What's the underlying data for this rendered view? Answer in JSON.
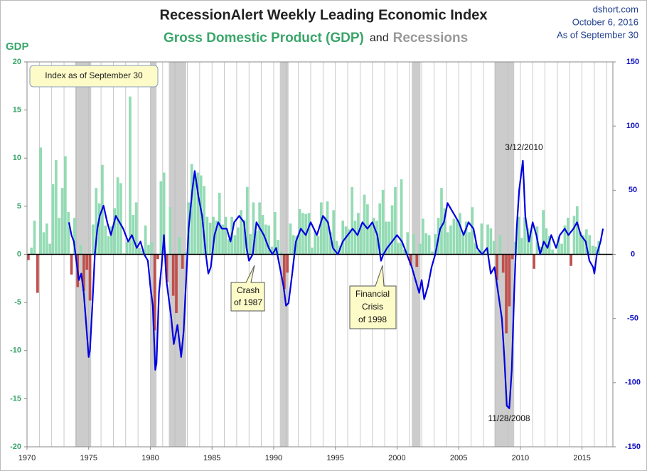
{
  "chart_data": {
    "type": "combo",
    "title": "RecessionAlert Weekly Leading Economic Index",
    "subtitle_parts": [
      "Gross Domestic Product (GDP)",
      "and",
      "Recessions"
    ],
    "source": "dshort.com",
    "date": "October 6, 2016",
    "as_of": "As of September 30",
    "y_label": "GDP",
    "box_note": "Index as of September 30",
    "annotations": {
      "peak": "3/12/2010",
      "trough": "11/28/2008",
      "crash": [
        "Crash",
        "of 1987"
      ],
      "crisis": [
        "Financial",
        "Crisis",
        "of 1998"
      ]
    },
    "xlim": [
      1970,
      2017.5
    ],
    "xticks": [
      1970,
      1975,
      1980,
      1985,
      1990,
      1995,
      2000,
      2005,
      2010,
      2015
    ],
    "ylim": [
      -20,
      20
    ],
    "yticks": [
      20,
      15,
      10,
      5,
      0,
      -5,
      -10,
      -15,
      -20
    ],
    "y2lim": [
      -150,
      150
    ],
    "y2ticks": [
      150,
      100,
      50,
      0,
      -50,
      -100,
      -150
    ],
    "recession_color": "#cccccc",
    "recessions": [
      [
        1973.9,
        1975.2
      ],
      [
        1980.0,
        1980.5
      ],
      [
        1981.5,
        1982.9
      ],
      [
        1990.5,
        1991.2
      ],
      [
        2001.2,
        2001.9
      ],
      [
        2007.9,
        2009.5
      ]
    ],
    "gdp": {
      "color": "#93dcb4",
      "negative_color": "#c0504d",
      "x": [
        1970,
        1970.25,
        1970.5,
        1970.75,
        1971,
        1971.25,
        1971.5,
        1971.75,
        1972,
        1972.25,
        1972.5,
        1972.75,
        1973,
        1973.25,
        1973.5,
        1973.75,
        1974,
        1974.25,
        1974.5,
        1974.75,
        1975,
        1975.25,
        1975.5,
        1975.75,
        1976,
        1976.25,
        1976.5,
        1976.75,
        1977,
        1977.25,
        1977.5,
        1977.75,
        1978,
        1978.25,
        1978.5,
        1978.75,
        1979,
        1979.25,
        1979.5,
        1979.75,
        1980,
        1980.25,
        1980.5,
        1980.75,
        1981,
        1981.25,
        1981.5,
        1981.75,
        1982,
        1982.25,
        1982.5,
        1982.75,
        1983,
        1983.25,
        1983.5,
        1983.75,
        1984,
        1984.25,
        1984.5,
        1984.75,
        1985,
        1985.25,
        1985.5,
        1985.75,
        1986,
        1986.25,
        1986.5,
        1986.75,
        1987,
        1987.25,
        1987.5,
        1987.75,
        1988,
        1988.25,
        1988.5,
        1988.75,
        1989,
        1989.25,
        1989.5,
        1989.75,
        1990,
        1990.25,
        1990.5,
        1990.75,
        1991,
        1991.25,
        1991.5,
        1991.75,
        1992,
        1992.25,
        1992.5,
        1992.75,
        1993,
        1993.25,
        1993.5,
        1993.75,
        1994,
        1994.25,
        1994.5,
        1994.75,
        1995,
        1995.25,
        1995.5,
        1995.75,
        1996,
        1996.25,
        1996.5,
        1996.75,
        1997,
        1997.25,
        1997.5,
        1997.75,
        1998,
        1998.25,
        1998.5,
        1998.75,
        1999,
        1999.25,
        1999.5,
        1999.75,
        2000,
        2000.25,
        2000.5,
        2000.75,
        2001,
        2001.25,
        2001.5,
        2001.75,
        2002,
        2002.25,
        2002.5,
        2002.75,
        2003,
        2003.25,
        2003.5,
        2003.75,
        2004,
        2004.25,
        2004.5,
        2004.75,
        2005,
        2005.25,
        2005.5,
        2005.75,
        2006,
        2006.25,
        2006.5,
        2006.75,
        2007,
        2007.25,
        2007.5,
        2007.75,
        2008,
        2008.25,
        2008.5,
        2008.75,
        2009,
        2009.25,
        2009.5,
        2009.75,
        2010,
        2010.25,
        2010.5,
        2010.75,
        2011,
        2011.25,
        2011.5,
        2011.75,
        2012,
        2012.25,
        2012.5,
        2012.75,
        2013,
        2013.25,
        2013.5,
        2013.75,
        2014,
        2014.25,
        2014.5,
        2014.75,
        2015,
        2015.25,
        2015.5,
        2015.75,
        2016,
        2016.25
      ],
      "values": [
        -0.6,
        0.7,
        3.5,
        -4.0,
        11.1,
        2.3,
        3.2,
        1.1,
        7.3,
        9.8,
        3.8,
        6.9,
        10.2,
        4.4,
        -2.1,
        3.8,
        -3.4,
        1.0,
        -3.8,
        -1.6,
        -4.8,
        3.1,
        6.9,
        5.3,
        9.3,
        3.0,
        1.9,
        2.9,
        4.8,
        8.0,
        7.4,
        0.1,
        1.3,
        16.4,
        4.1,
        5.4,
        0.7,
        0.4,
        3.0,
        1.0,
        1.3,
        -7.9,
        -0.5,
        7.6,
        8.5,
        -2.9,
        4.9,
        -4.3,
        -6.1,
        1.8,
        -1.5,
        0.2,
        5.4,
        9.4,
        8.1,
        8.5,
        8.2,
        7.1,
        3.9,
        3.3,
        3.9,
        3.5,
        6.4,
        3.1,
        3.9,
        1.6,
        3.9,
        2.0,
        2.8,
        4.6,
        3.6,
        7.0,
        2.1,
        5.4,
        2.4,
        5.4,
        4.1,
        3.1,
        3.0,
        0.8,
        4.4,
        1.5,
        0.3,
        -3.6,
        -1.9,
        3.2,
        2.0,
        1.9,
        4.7,
        4.3,
        4.2,
        4.3,
        0.7,
        2.4,
        1.9,
        5.4,
        3.9,
        5.5,
        2.3,
        4.6,
        1.4,
        0.9,
        3.5,
        2.9,
        2.6,
        7.0,
        3.5,
        4.3,
        3.1,
        6.2,
        5.2,
        3.1,
        3.8,
        3.5,
        5.3,
        6.7,
        3.4,
        3.4,
        5.1,
        7.0,
        1.2,
        7.8,
        0.5,
        2.3,
        -1.1,
        2.1,
        -1.3,
        1.1,
        3.7,
        2.2,
        2.0,
        0.3,
        2.1,
        3.8,
        6.9,
        4.8,
        2.3,
        3.0,
        3.7,
        3.5,
        4.3,
        2.1,
        3.4,
        2.3,
        4.9,
        1.2,
        0.4,
        3.2,
        0.2,
        3.1,
        2.7,
        1.4,
        -2.7,
        2.0,
        -1.9,
        -8.2,
        -5.4,
        -0.5,
        1.3,
        3.9,
        1.7,
        3.9,
        2.7,
        2.5,
        -1.5,
        2.9,
        0.8,
        4.6,
        2.7,
        1.9,
        0.5,
        0.1,
        1.9,
        1.1,
        3.0,
        3.8,
        -1.2,
        4.0,
        5.0,
        2.3,
        2.0,
        2.6,
        2.0,
        0.9,
        0.8,
        1.4
      ]
    },
    "lei": {
      "color": "#0000e0",
      "axis": "y2",
      "x": [
        1973.4,
        1973.6,
        1973.8,
        1974.0,
        1974.2,
        1974.4,
        1974.6,
        1974.8,
        1975.0,
        1975.1,
        1975.3,
        1975.5,
        1975.7,
        1975.9,
        1976.2,
        1976.5,
        1976.8,
        1977.2,
        1977.5,
        1977.8,
        1978.2,
        1978.5,
        1978.9,
        1979.2,
        1979.5,
        1979.8,
        1980.0,
        1980.2,
        1980.4,
        1980.5,
        1980.7,
        1980.9,
        1981.1,
        1981.3,
        1981.5,
        1981.7,
        1981.9,
        1982.2,
        1982.5,
        1982.7,
        1982.9,
        1983.1,
        1983.4,
        1983.6,
        1983.9,
        1984.2,
        1984.5,
        1984.7,
        1984.9,
        1985.2,
        1985.5,
        1985.8,
        1986.2,
        1986.5,
        1986.8,
        1987.2,
        1987.6,
        1987.8,
        1988.0,
        1988.3,
        1988.6,
        1988.9,
        1989.2,
        1989.6,
        1989.9,
        1990.2,
        1990.5,
        1990.8,
        1991.0,
        1991.2,
        1991.5,
        1991.8,
        1992.2,
        1992.6,
        1993.0,
        1993.5,
        1994.0,
        1994.4,
        1994.8,
        1995.2,
        1995.6,
        1996.0,
        1996.4,
        1996.8,
        1997.2,
        1997.6,
        1998.0,
        1998.4,
        1998.7,
        1998.9,
        1999.2,
        1999.6,
        2000.0,
        2000.4,
        2000.8,
        2001.2,
        2001.5,
        2001.8,
        2002.0,
        2002.2,
        2002.5,
        2002.8,
        2003.1,
        2003.5,
        2003.8,
        2004.1,
        2004.4,
        2004.7,
        2005.0,
        2005.4,
        2005.8,
        2006.2,
        2006.5,
        2006.9,
        2007.3,
        2007.6,
        2007.9,
        2008.2,
        2008.5,
        2008.7,
        2008.9,
        2009.1,
        2009.3,
        2009.5,
        2009.7,
        2009.9,
        2010.2,
        2010.4,
        2010.7,
        2011.0,
        2011.3,
        2011.6,
        2011.9,
        2012.2,
        2012.5,
        2012.9,
        2013.2,
        2013.6,
        2013.9,
        2014.3,
        2014.6,
        2014.9,
        2015.3,
        2015.6,
        2015.9,
        2016.0,
        2016.2,
        2016.5,
        2016.7
      ],
      "values": [
        25,
        15,
        10,
        -5,
        -20,
        -15,
        -30,
        -55,
        -80,
        -75,
        -40,
        0,
        20,
        30,
        38,
        25,
        15,
        30,
        25,
        20,
        10,
        15,
        5,
        10,
        0,
        -5,
        -25,
        -40,
        -90,
        -85,
        -30,
        -10,
        15,
        -20,
        -35,
        -50,
        -70,
        -55,
        -80,
        -60,
        -20,
        20,
        50,
        65,
        45,
        30,
        0,
        -15,
        -10,
        15,
        25,
        20,
        20,
        10,
        25,
        30,
        25,
        5,
        -5,
        0,
        25,
        20,
        15,
        5,
        0,
        5,
        -10,
        -25,
        -40,
        -38,
        -15,
        10,
        20,
        15,
        25,
        15,
        30,
        25,
        5,
        0,
        10,
        15,
        20,
        15,
        25,
        20,
        25,
        15,
        -5,
        0,
        5,
        10,
        15,
        10,
        0,
        -10,
        -20,
        -30,
        -20,
        -35,
        -25,
        -10,
        0,
        20,
        25,
        40,
        35,
        30,
        25,
        15,
        25,
        20,
        5,
        0,
        5,
        -15,
        -10,
        -30,
        -50,
        -80,
        -118,
        -120,
        -90,
        -30,
        20,
        50,
        73,
        30,
        10,
        25,
        15,
        0,
        10,
        5,
        15,
        5,
        15,
        20,
        15,
        20,
        25,
        15,
        10,
        -5,
        -10,
        -15,
        0,
        10,
        20
      ]
    }
  }
}
